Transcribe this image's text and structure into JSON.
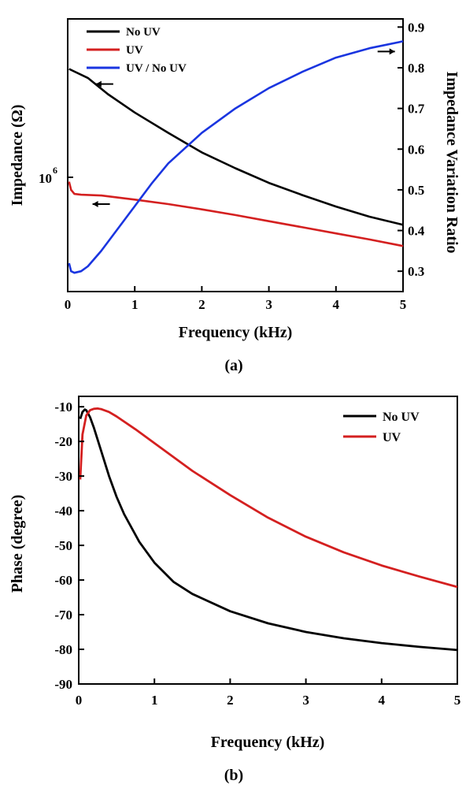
{
  "chart_data": [
    {
      "type": "line",
      "panel_label": "(a)",
      "xlabel": "Frequency (kHz)",
      "ylabel_left": "Impedance (Ω)",
      "ylabel_right": "Impedance Variation Ratio",
      "xlim": [
        0,
        5
      ],
      "xticks": [
        "0",
        "1",
        "2",
        "3",
        "4",
        "5"
      ],
      "ylim_right": [
        0.25,
        0.92
      ],
      "yticks_right": [
        "0.3",
        "0.4",
        "0.5",
        "0.6",
        "0.7",
        "0.8",
        "0.9"
      ],
      "left_tick_label": "10",
      "left_tick_exponent": "6",
      "left_scale": "log",
      "legend": {
        "position": "top-left",
        "entries": [
          "No UV",
          "UV",
          "UV / No UV"
        ]
      },
      "colors": {
        "No UV": "#000000",
        "UV": "#d42020",
        "UV / No UV": "#1a35e0"
      },
      "arrows": [
        {
          "series": "No UV",
          "direction": "left"
        },
        {
          "series": "UV",
          "direction": "left"
        },
        {
          "series": "UV / No UV",
          "direction": "right"
        }
      ],
      "series": [
        {
          "name": "No UV",
          "axis": "left",
          "note_units": "right-axis-equivalent position",
          "x": [
            0.02,
            0.3,
            0.6,
            1.0,
            1.5,
            2.0,
            2.5,
            3.0,
            3.5,
            4.0,
            4.5,
            5.0
          ],
          "y": [
            0.797,
            0.775,
            0.735,
            0.69,
            0.64,
            0.592,
            0.553,
            0.517,
            0.487,
            0.459,
            0.434,
            0.414
          ]
        },
        {
          "name": "UV",
          "axis": "left",
          "x": [
            0.02,
            0.05,
            0.1,
            0.2,
            0.5,
            1.0,
            1.5,
            2.0,
            2.5,
            3.0,
            3.5,
            4.0,
            4.5,
            5.0
          ],
          "y": [
            0.52,
            0.5,
            0.49,
            0.488,
            0.486,
            0.476,
            0.465,
            0.452,
            0.438,
            0.423,
            0.408,
            0.393,
            0.378,
            0.362
          ]
        },
        {
          "name": "UV / No UV",
          "axis": "right",
          "x": [
            0.02,
            0.05,
            0.1,
            0.2,
            0.3,
            0.5,
            0.75,
            1.0,
            1.25,
            1.5,
            2.0,
            2.5,
            3.0,
            3.5,
            4.0,
            4.5,
            5.0
          ],
          "y": [
            0.32,
            0.3,
            0.296,
            0.3,
            0.312,
            0.35,
            0.405,
            0.46,
            0.515,
            0.565,
            0.64,
            0.7,
            0.75,
            0.79,
            0.825,
            0.848,
            0.865
          ]
        }
      ]
    },
    {
      "type": "line",
      "panel_label": "(b)",
      "xlabel": "Frequency (kHz)",
      "ylabel": "Phase (degree)",
      "xlim": [
        0,
        5
      ],
      "ylim": [
        -90,
        -7
      ],
      "xticks": [
        "0",
        "1",
        "2",
        "3",
        "4",
        "5"
      ],
      "yticks": [
        "-10",
        "-20",
        "-30",
        "-40",
        "-50",
        "-60",
        "-70",
        "-80",
        "-90"
      ],
      "legend": {
        "position": "top-right",
        "entries": [
          "No UV",
          "UV"
        ]
      },
      "colors": {
        "No UV": "#000000",
        "UV": "#d42020"
      },
      "series": [
        {
          "name": "No UV",
          "x": [
            0.02,
            0.05,
            0.08,
            0.1,
            0.15,
            0.2,
            0.3,
            0.4,
            0.5,
            0.6,
            0.8,
            1.0,
            1.25,
            1.5,
            2.0,
            2.5,
            3.0,
            3.5,
            4.0,
            4.5,
            5.0
          ],
          "y": [
            -13.5,
            -11.5,
            -10.8,
            -11.0,
            -13.0,
            -16.0,
            -23.0,
            -30.0,
            -36.0,
            -41.0,
            -49.0,
            -55.0,
            -60.5,
            -64.0,
            -69.0,
            -72.5,
            -75.0,
            -76.8,
            -78.2,
            -79.3,
            -80.2
          ]
        },
        {
          "name": "UV",
          "x": [
            0.02,
            0.05,
            0.1,
            0.15,
            0.2,
            0.25,
            0.3,
            0.4,
            0.5,
            0.75,
            1.0,
            1.5,
            2.0,
            2.5,
            3.0,
            3.5,
            4.0,
            4.5,
            5.0
          ],
          "y": [
            -31.0,
            -18.0,
            -12.5,
            -11.0,
            -10.6,
            -10.5,
            -10.7,
            -11.5,
            -12.8,
            -16.5,
            -20.5,
            -28.5,
            -35.5,
            -42.0,
            -47.5,
            -52.0,
            -55.8,
            -59.0,
            -62.0
          ]
        }
      ]
    }
  ]
}
